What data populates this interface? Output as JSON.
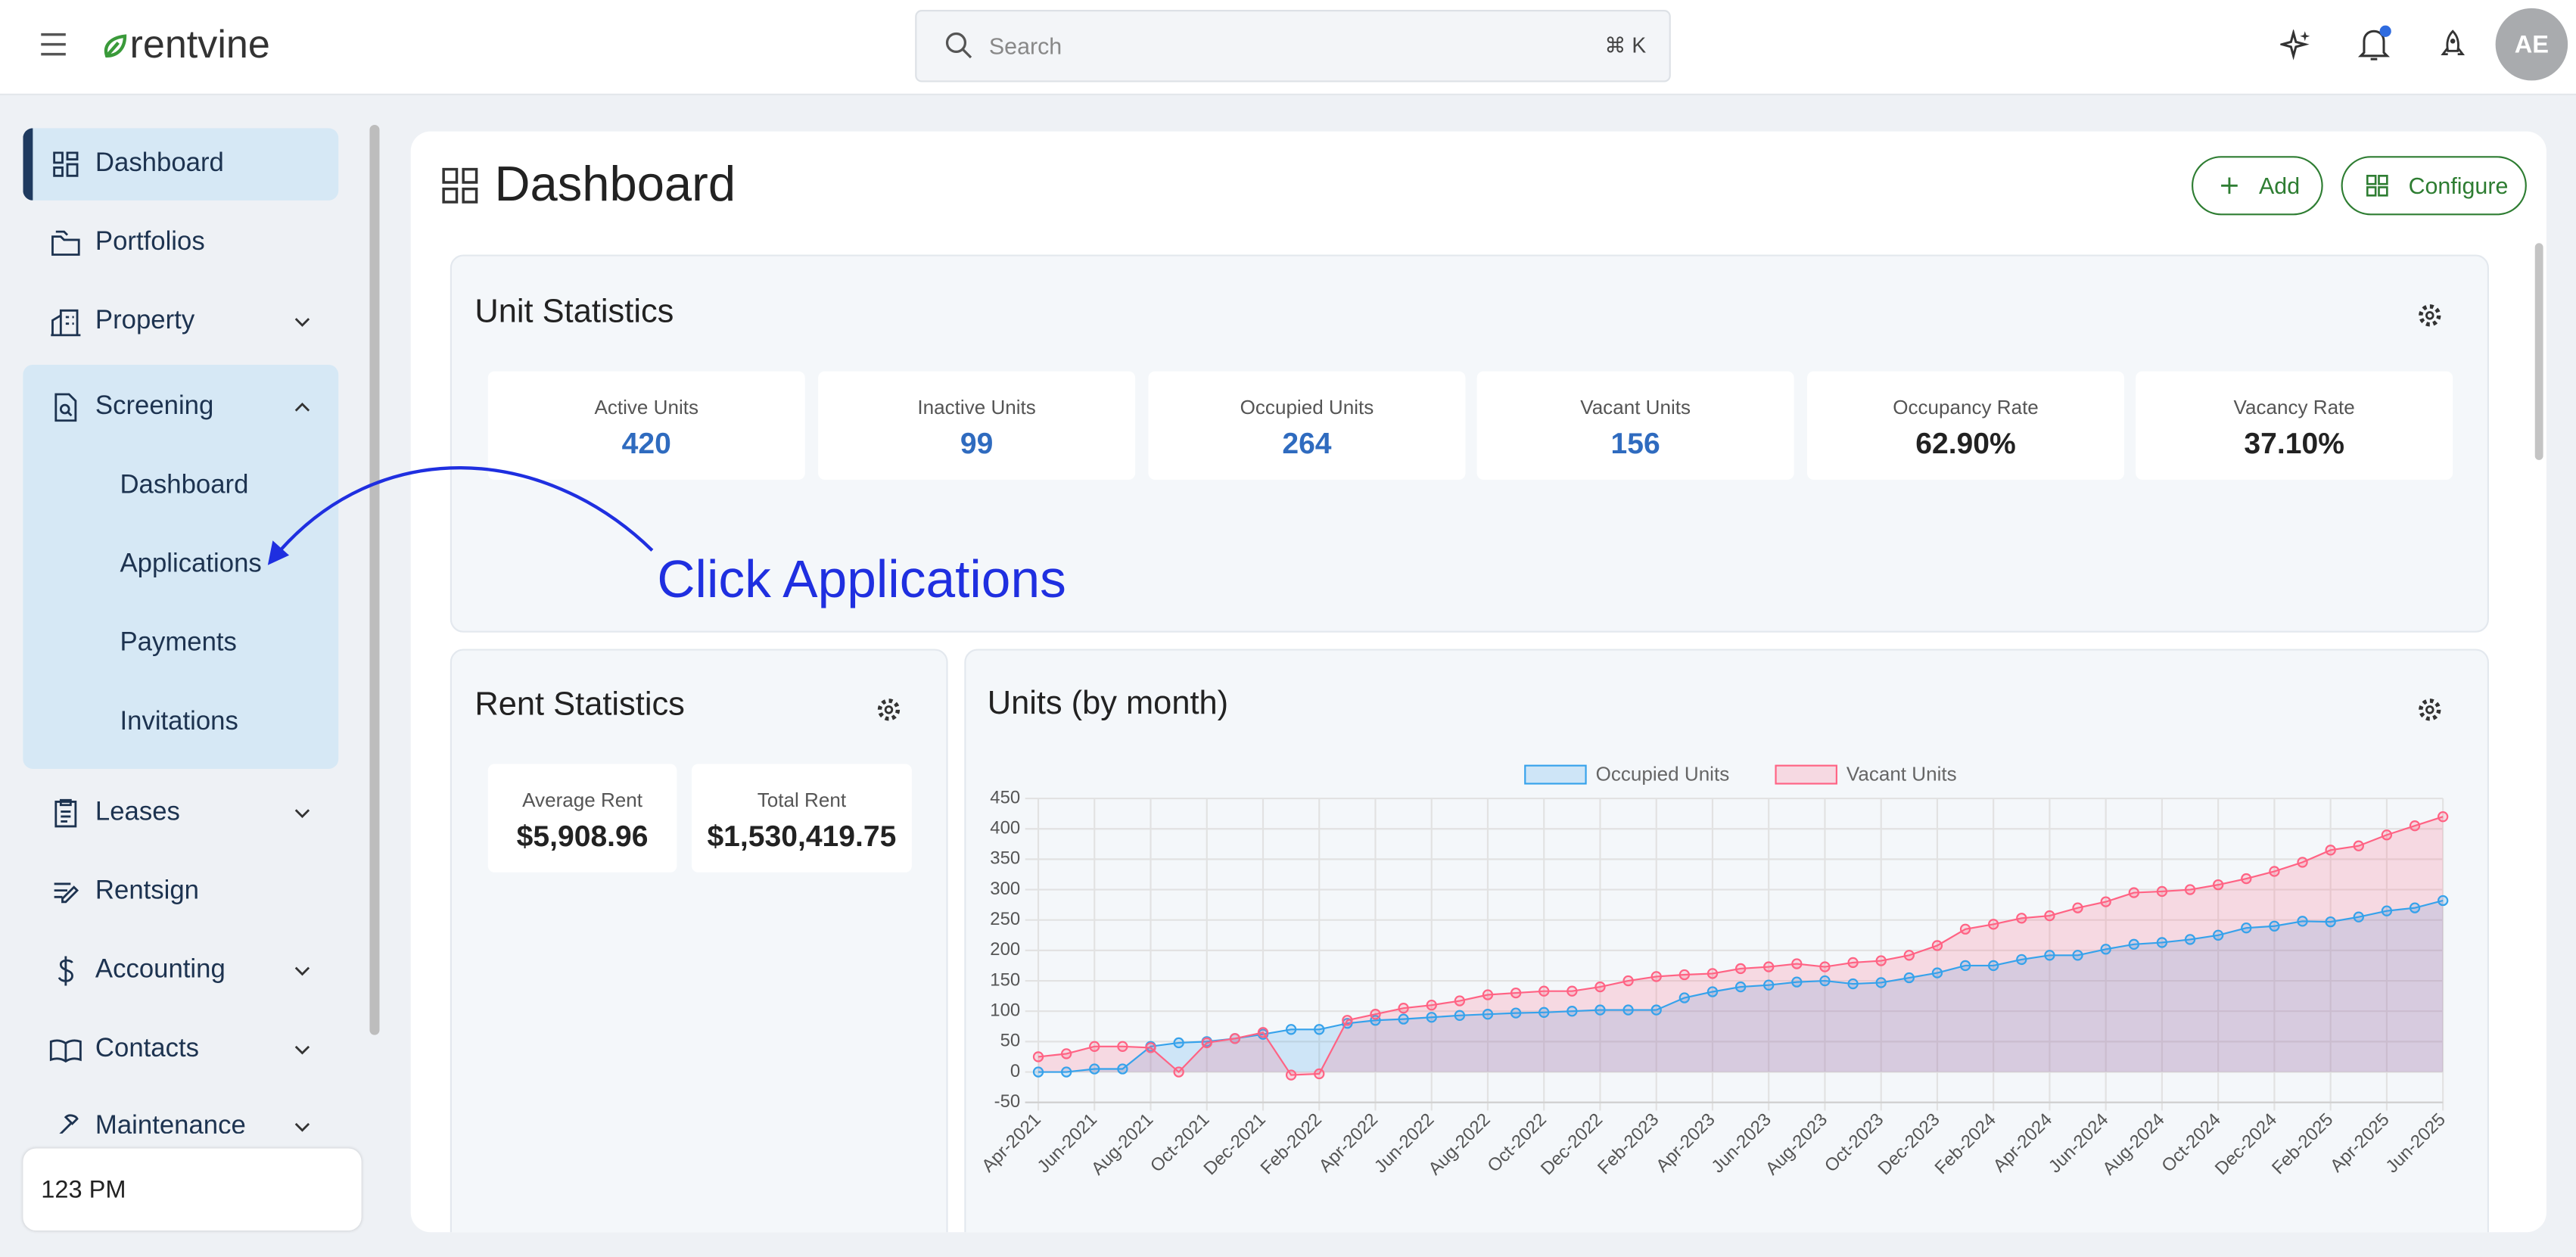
{
  "header": {
    "logo": "rentvine",
    "search_placeholder": "Search",
    "search_shortcut": "⌘ K",
    "avatar": "AE"
  },
  "sidebar": {
    "items": [
      {
        "label": "Dashboard"
      },
      {
        "label": "Portfolios"
      },
      {
        "label": "Property"
      },
      {
        "label": "Screening"
      },
      {
        "label": "Leases"
      },
      {
        "label": "Rentsign"
      },
      {
        "label": "Accounting"
      },
      {
        "label": "Contacts"
      },
      {
        "label": "Maintenance"
      }
    ],
    "screening_subitems": [
      "Dashboard",
      "Applications",
      "Payments",
      "Invitations"
    ],
    "footer": "123 PM"
  },
  "page": {
    "title": "Dashboard",
    "buttons": [
      "Add",
      "Configure"
    ]
  },
  "unit_statistics": {
    "title": "Unit Statistics",
    "cards": [
      {
        "label": "Active Units",
        "value": "420"
      },
      {
        "label": "Inactive Units",
        "value": "99"
      },
      {
        "label": "Occupied Units",
        "value": "264"
      },
      {
        "label": "Vacant Units",
        "value": "156"
      },
      {
        "label": "Occupancy Rate",
        "value": "62.90%"
      },
      {
        "label": "Vacancy Rate",
        "value": "37.10%"
      }
    ]
  },
  "rent_statistics": {
    "title": "Rent Statistics",
    "cards": [
      {
        "label": "Average Rent",
        "value": "$5,908.96"
      },
      {
        "label": "Total Rent",
        "value": "$1,530,419.75"
      }
    ]
  },
  "annotation": "Click Applications",
  "chart_data": {
    "type": "line",
    "title": "Units (by month)",
    "categories": [
      "Apr-2021",
      null,
      "Jun-2021",
      null,
      "Aug-2021",
      null,
      "Oct-2021",
      null,
      "Dec-2021",
      null,
      "Feb-2022",
      null,
      "Apr-2022",
      null,
      "Jun-2022",
      null,
      "Aug-2022",
      null,
      "Oct-2022",
      null,
      "Dec-2022",
      null,
      "Feb-2023",
      null,
      "Apr-2023",
      null,
      "Jun-2023",
      null,
      "Aug-2023",
      null,
      "Oct-2023",
      null,
      "Dec-2023",
      null,
      "Feb-2024",
      null,
      "Apr-2024",
      null,
      "Jun-2024",
      null,
      "Aug-2024",
      null,
      "Oct-2024",
      null,
      "Dec-2024",
      null,
      "Feb-2025",
      null,
      "Apr-2025",
      null,
      "Jun-2025"
    ],
    "series": [
      {
        "name": "Occupied Units",
        "color": "#36a2eb",
        "fill": "rgba(54,162,235,0.2)",
        "values": [
          0,
          0,
          5,
          5,
          42,
          48,
          50,
          55,
          62,
          70,
          70,
          80,
          85,
          87,
          90,
          93,
          95,
          97,
          98,
          100,
          102,
          102,
          102,
          122,
          132,
          140,
          143,
          148,
          150,
          145,
          147,
          155,
          163,
          175,
          175,
          185,
          192,
          192,
          202,
          210,
          213,
          218,
          225,
          237,
          240,
          248,
          247,
          255,
          265,
          270,
          282
        ]
      },
      {
        "name": "Vacant Units",
        "color": "#ff6384",
        "fill": "rgba(255,99,132,0.2)",
        "values": [
          25,
          30,
          42,
          42,
          40,
          0,
          48,
          55,
          65,
          -5,
          -3,
          85,
          95,
          105,
          110,
          117,
          127,
          130,
          133,
          133,
          140,
          150,
          157,
          160,
          162,
          170,
          173,
          178,
          173,
          180,
          183,
          192,
          208,
          235,
          243,
          253,
          257,
          270,
          280,
          295,
          297,
          300,
          308,
          318,
          330,
          345,
          365,
          372,
          390,
          405,
          420
        ]
      }
    ],
    "ylim": [
      -50,
      450
    ],
    "yticks": [
      -50,
      0,
      50,
      100,
      150,
      200,
      250,
      300,
      350,
      400,
      450
    ],
    "grid": true,
    "legend": "top"
  }
}
